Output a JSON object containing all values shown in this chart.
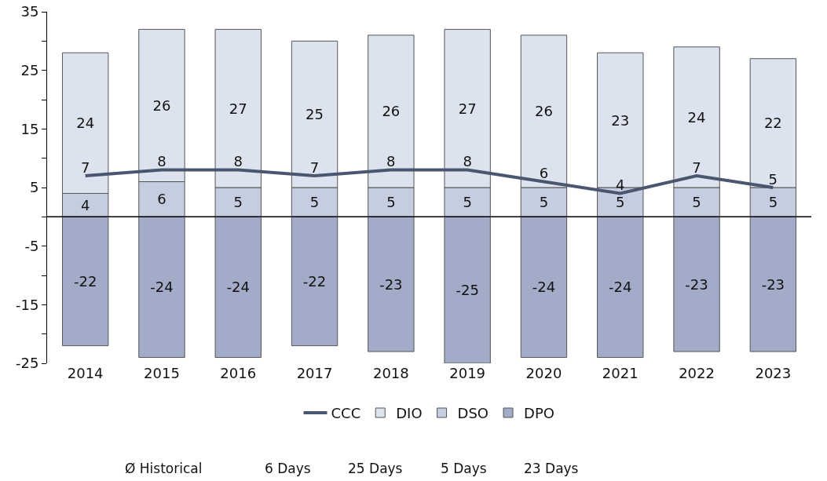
{
  "chart_data": {
    "type": "bar",
    "stacked": true,
    "categories": [
      "2014",
      "2015",
      "2016",
      "2017",
      "2018",
      "2019",
      "2020",
      "2021",
      "2022",
      "2023"
    ],
    "series": [
      {
        "name": "DPO",
        "color": "#a2acc9",
        "values": [
          -22,
          -24,
          -24,
          -22,
          -23,
          -25,
          -24,
          -24,
          -23,
          -23
        ]
      },
      {
        "name": "DSO",
        "color": "#c5cde0",
        "values": [
          4,
          6,
          5,
          5,
          5,
          5,
          5,
          5,
          5,
          5
        ]
      },
      {
        "name": "DIO",
        "color": "#dde3ee",
        "values": [
          24,
          26,
          27,
          25,
          26,
          27,
          26,
          23,
          24,
          22
        ]
      },
      {
        "name": "CCC",
        "type": "line",
        "color": "#4a5570",
        "values": [
          7,
          8,
          8,
          7,
          8,
          8,
          6,
          4,
          7,
          5
        ]
      }
    ],
    "ylim": [
      -25,
      35
    ],
    "yticks": [
      -25,
      {
        "value": -20,
        "label": null
      },
      -15,
      {
        "value": -10,
        "label": null
      },
      -5,
      {
        "value": 0,
        "label": null
      },
      5,
      {
        "value": 10,
        "label": null
      },
      15,
      {
        "value": 20,
        "label": null
      },
      25,
      {
        "value": 30,
        "label": null
      },
      35
    ],
    "ref_lines": [
      {
        "axis": "y",
        "value": 0,
        "color": "#000000"
      }
    ],
    "data_labels": true,
    "grid": false,
    "legend": "bottom",
    "marker": "none",
    "line_style": "solid",
    "annotations": [
      "Ø Historical",
      "6 Days",
      "25 Days",
      "5 Days",
      "23 Days"
    ]
  }
}
